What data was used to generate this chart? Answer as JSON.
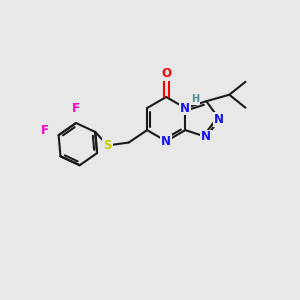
{
  "bg_color": "#e8e8e8",
  "bond_color": "#1a1a1a",
  "bond_width": 1.5,
  "atom_colors": {
    "N": "#1414ff",
    "O": "#ff0000",
    "S": "#cccc00",
    "F": "#ff00cc",
    "H": "#4a9090",
    "C": "#1a1a1a"
  },
  "font_size": 8.5,
  "fig_size": [
    3.0,
    3.0
  ],
  "dpi": 100
}
